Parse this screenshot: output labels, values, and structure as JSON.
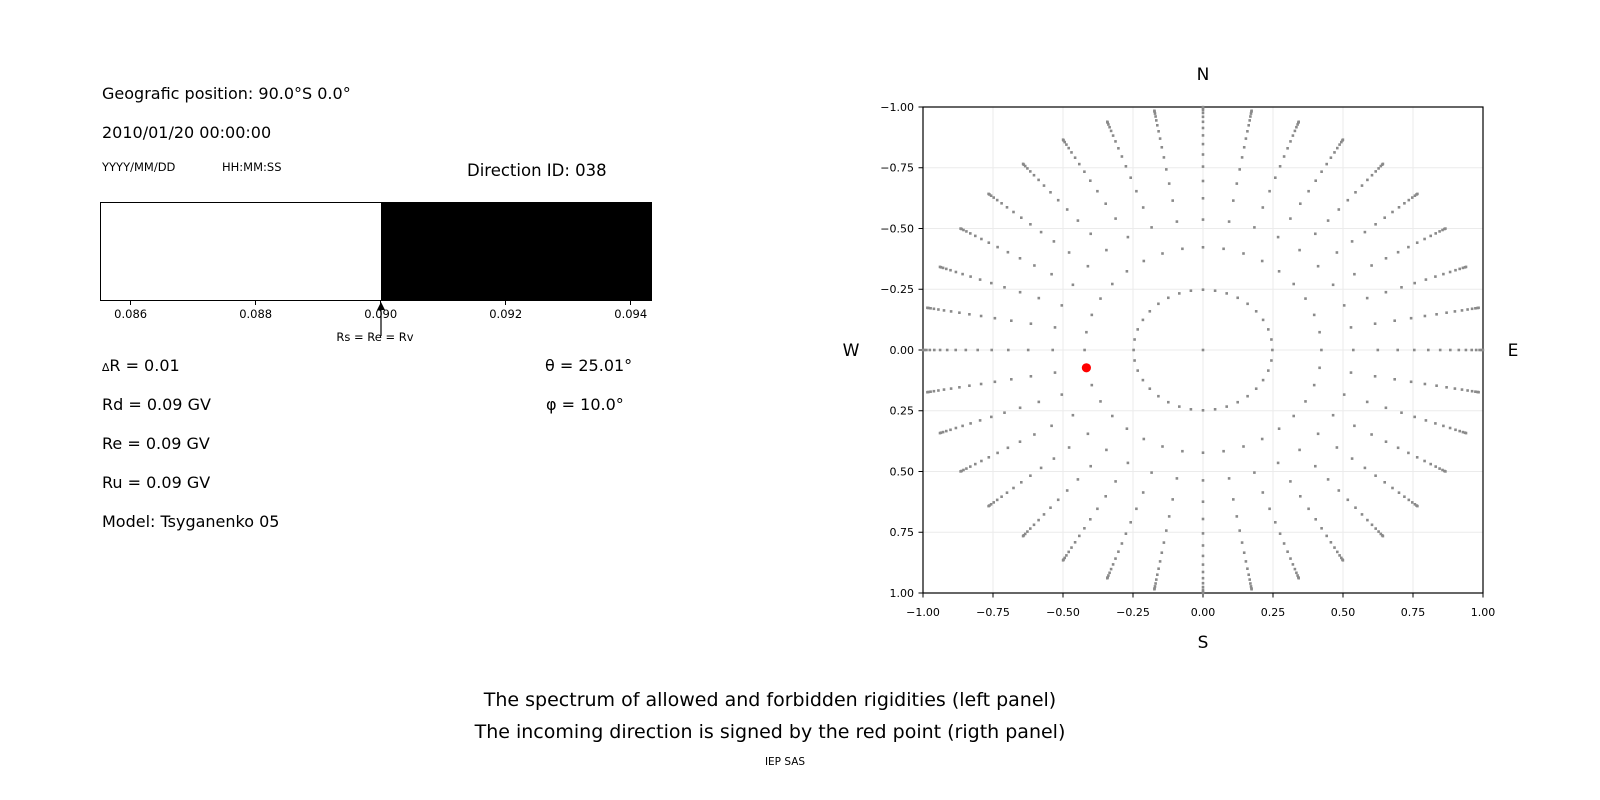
{
  "header": {
    "position": "Geografic position: 90.0°S 0.0°",
    "datetime": "2010/01/20 00:00:00",
    "date_format": "YYYY/MM/DD",
    "time_format": "HH:MM:SS",
    "direction_id": "Direction ID: 038"
  },
  "params": {
    "delta_symbol": "∆",
    "delta_rest": "R = 0.01",
    "rd": "Rd = 0.09 GV",
    "re": "Re = 0.09 GV",
    "ru": "Ru = 0.09 GV",
    "model": "Model: Tsyganenko 05",
    "theta": "θ = 25.01°",
    "phi": "φ = 10.0°"
  },
  "captions": {
    "line1": "The spectrum of allowed and forbidden rigidities (left panel)",
    "line2": "The incoming direction is signed by the red point (rigth panel)",
    "credit": "IEP SAS"
  },
  "chart_data": [
    {
      "type": "spectrum-bar",
      "title": "The spectrum of allowed and forbidden rigidities",
      "xlim": [
        0.08551,
        0.09434
      ],
      "tick_values": [
        0.086,
        0.088,
        0.09,
        0.092,
        0.094
      ],
      "tick_labels": [
        "0.086",
        "0.088",
        "0.090",
        "0.092",
        "0.094"
      ],
      "boundary_value": 0.09,
      "allowed_color": "#ffffff",
      "forbidden_color": "#000000",
      "annotation": "Rs = Re = Rv"
    },
    {
      "type": "scatter",
      "title": "Incoming direction grid (red point = incoming direction)",
      "xlim": [
        -1,
        1
      ],
      "ylim": [
        -1,
        1
      ],
      "grid": true,
      "grid_color": "#ebebeb",
      "tick_values": [
        -1,
        -0.75,
        -0.5,
        -0.25,
        0,
        0.25,
        0.5,
        0.75,
        1
      ],
      "tick_labels": [
        "−1.00",
        "−0.75",
        "−0.50",
        "−0.25",
        "0.00",
        "0.25",
        "0.50",
        "0.75",
        "1.00"
      ],
      "compass": {
        "top": "N",
        "bottom": "S",
        "left": "W",
        "right": "E"
      },
      "dot_color": "#8a8a8a",
      "center_dot": true,
      "azimuths_deg": [
        0,
        10,
        20,
        30,
        40,
        50,
        60,
        70,
        80,
        90,
        100,
        110,
        120,
        130,
        140,
        150,
        160,
        170,
        180,
        190,
        200,
        210,
        220,
        230,
        240,
        250,
        260,
        270,
        280,
        290,
        300,
        310,
        320,
        330,
        340,
        350
      ],
      "radii": [
        0.248,
        0.4227,
        0.5367,
        0.6242,
        0.6953,
        0.7546,
        0.8047,
        0.8472,
        0.8833,
        0.9137,
        0.9391,
        0.9596,
        0.9758,
        0.9877,
        0.9956,
        0.9995
      ],
      "note": "spoke dots: r = sin(zenith) with cos(zenith) = 1 − (k−0.5)/16, k = 1…16",
      "red_point": {
        "azimuth_deg": 190,
        "radius": 0.4227,
        "x": -0.4163,
        "y": -0.0734,
        "color": "#ff0000"
      }
    }
  ]
}
